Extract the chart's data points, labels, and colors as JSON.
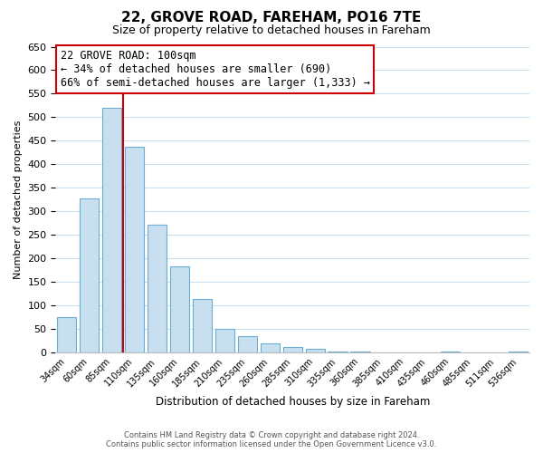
{
  "title": "22, GROVE ROAD, FAREHAM, PO16 7TE",
  "subtitle": "Size of property relative to detached houses in Fareham",
  "xlabel": "Distribution of detached houses by size in Fareham",
  "ylabel": "Number of detached properties",
  "bar_labels": [
    "34sqm",
    "60sqm",
    "85sqm",
    "110sqm",
    "135sqm",
    "160sqm",
    "185sqm",
    "210sqm",
    "235sqm",
    "260sqm",
    "285sqm",
    "310sqm",
    "335sqm",
    "360sqm",
    "385sqm",
    "410sqm",
    "435sqm",
    "460sqm",
    "485sqm",
    "511sqm",
    "536sqm"
  ],
  "bar_values": [
    75,
    328,
    519,
    438,
    272,
    183,
    113,
    50,
    35,
    19,
    12,
    8,
    2,
    2,
    0,
    0,
    0,
    1,
    0,
    0,
    1
  ],
  "bar_color": "#c8dff0",
  "bar_edge_color": "#6aaed6",
  "highlight_index": 2,
  "highlight_line_color": "#cc0000",
  "ylim": [
    0,
    650
  ],
  "yticks": [
    0,
    50,
    100,
    150,
    200,
    250,
    300,
    350,
    400,
    450,
    500,
    550,
    600,
    650
  ],
  "annotation_title": "22 GROVE ROAD: 100sqm",
  "annotation_line1": "← 34% of detached houses are smaller (690)",
  "annotation_line2": "66% of semi-detached houses are larger (1,333) →",
  "annotation_box_color": "#ffffff",
  "annotation_box_edge": "#cc0000",
  "footer_line1": "Contains HM Land Registry data © Crown copyright and database right 2024.",
  "footer_line2": "Contains public sector information licensed under the Open Government Licence v3.0.",
  "background_color": "#ffffff",
  "grid_color": "#c8dff0"
}
